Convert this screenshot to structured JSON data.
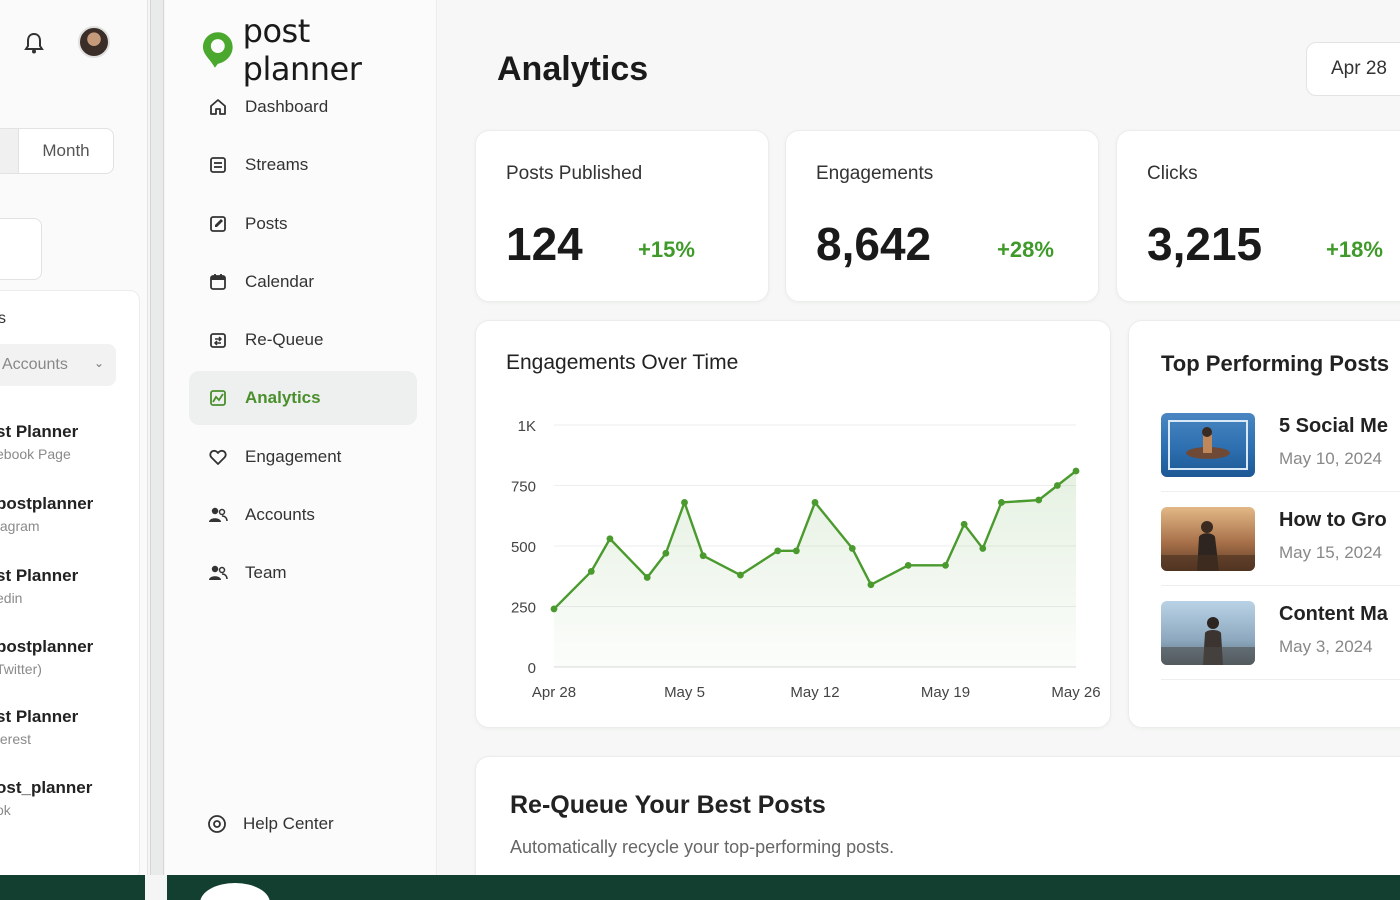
{
  "background_window": {
    "segment_label": "Month",
    "section_label": "s",
    "select_label": "Accounts",
    "accounts": [
      {
        "name": "st Planner",
        "type": "ebook Page"
      },
      {
        "name": "postplanner",
        "type": "tagram"
      },
      {
        "name": "st Planner",
        "type": "edin"
      },
      {
        "name": "postplanner",
        "type": "Twitter)"
      },
      {
        "name": "st Planner",
        "type": "terest"
      },
      {
        "name": "ost_planner",
        "type": "ok"
      }
    ]
  },
  "app": {
    "logo_text": "post planner",
    "nav": [
      {
        "label": "Dashboard",
        "icon": "home-icon",
        "active": false
      },
      {
        "label": "Streams",
        "icon": "streams-icon",
        "active": false
      },
      {
        "label": "Posts",
        "icon": "edit-icon",
        "active": false
      },
      {
        "label": "Calendar",
        "icon": "calendar-icon",
        "active": false
      },
      {
        "label": "Re-Queue",
        "icon": "requeue-icon",
        "active": false
      },
      {
        "label": "Analytics",
        "icon": "analytics-icon",
        "active": true
      },
      {
        "label": "Engagement",
        "icon": "heart-icon",
        "active": false
      },
      {
        "label": "Accounts",
        "icon": "users-icon",
        "active": false
      },
      {
        "label": "Team",
        "icon": "team-icon",
        "active": false
      }
    ],
    "help_label": "Help Center",
    "accent_color": "#4a8f2c"
  },
  "page": {
    "title": "Analytics",
    "date_range": "Apr 28"
  },
  "stats": [
    {
      "label": "Posts Published",
      "value": "124",
      "delta": "+15%"
    },
    {
      "label": "Engagements",
      "value": "8,642",
      "delta": "+28%"
    },
    {
      "label": "Clicks",
      "value": "3,215",
      "delta": "+18%"
    }
  ],
  "chart": {
    "title": "Engagements Over Time"
  },
  "chart_data": {
    "type": "line",
    "title": "Engagements Over Time",
    "xlabel": "",
    "ylabel": "",
    "x_ticks": [
      "Apr 28",
      "May 5",
      "May 12",
      "May 19",
      "May 26"
    ],
    "y_ticks": [
      "0",
      "250",
      "500",
      "750",
      "1K"
    ],
    "ylim": [
      0,
      1000
    ],
    "x": [
      "Apr 28",
      "Apr 30",
      "May 1",
      "May 3",
      "May 4",
      "May 5",
      "May 6",
      "May 8",
      "May 10",
      "May 11",
      "May 12",
      "May 14",
      "May 15",
      "May 17",
      "May 19",
      "May 20",
      "May 21",
      "May 22",
      "May 24",
      "May 25",
      "May 26"
    ],
    "values": [
      240,
      395,
      530,
      370,
      470,
      680,
      460,
      380,
      480,
      480,
      680,
      490,
      340,
      420,
      420,
      590,
      490,
      680,
      690,
      750,
      810
    ],
    "series_color": "#4a9a2e",
    "grid": true
  },
  "top_posts": {
    "title": "Top Performing Posts",
    "items": [
      {
        "title": "5 Social Me",
        "date": "May 10, 2024"
      },
      {
        "title": "How to Gro",
        "date": "May 15, 2024"
      },
      {
        "title": "Content Ma",
        "date": "May 3, 2024"
      }
    ]
  },
  "requeue": {
    "title": "Re-Queue Your Best Posts",
    "subtitle": "Automatically recycle your top-performing posts."
  }
}
